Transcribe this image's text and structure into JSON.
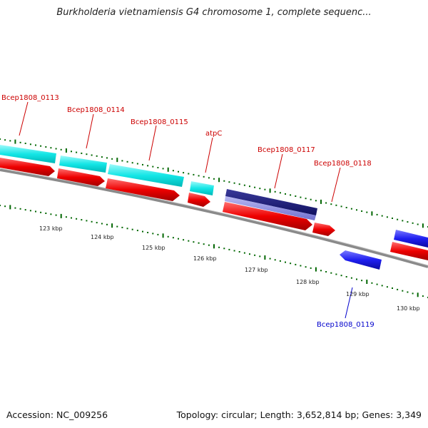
{
  "title": "Burkholderia vietnamiensis G4 chromosome 1, complete sequenc...",
  "footer": {
    "accession": "Accession: NC_009256",
    "topology": "Topology: circular; Length: 3,652,814 bp; Genes: 3,349"
  },
  "colors": {
    "forward_cds": "#00e5e5",
    "forward_orf": "#e00000",
    "highlight_gene": "#1a1a7a",
    "reverse_gene": "#1a1aee",
    "label_forward": "#cc0000",
    "label_reverse": "#0000cc",
    "tick": "#006600",
    "backbone": "#888888"
  },
  "scale_labels": [
    "123 kbp",
    "124 kbp",
    "125 kbp",
    "126 kbp",
    "127 kbp",
    "128 kbp",
    "129 kbp",
    "130 kbp"
  ],
  "gene_labels": [
    {
      "name": "Bcep1808_0113",
      "strand": "forward"
    },
    {
      "name": "Bcep1808_0114",
      "strand": "forward"
    },
    {
      "name": "Bcep1808_0115",
      "strand": "forward"
    },
    {
      "name": "atpC",
      "strand": "forward"
    },
    {
      "name": "Bcep1808_0117",
      "strand": "forward"
    },
    {
      "name": "Bcep1808_0118",
      "strand": "forward"
    },
    {
      "name": "Bcep1808_0119",
      "strand": "reverse"
    }
  ]
}
